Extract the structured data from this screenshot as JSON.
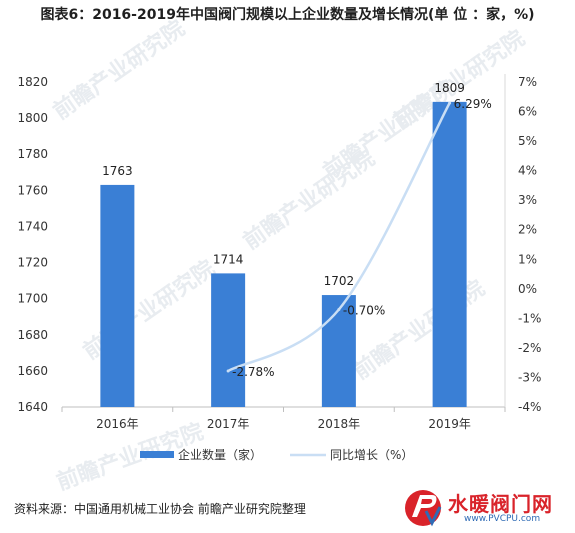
{
  "title": "图表6：2016-2019年中国阀门规模以上企业数量及增长情况(单 位 ：家，%)",
  "source": "资料来源：中国通用机械工业协会 前瞻产业研究院整理",
  "watermark": "前瞻产业研究院",
  "logo": {
    "name": "水暖阀门网",
    "url": "www.PVCPU.com"
  },
  "colors": {
    "bar": "#3a7fd5",
    "line": "#c9def4",
    "accent": "#d9232a"
  },
  "chart_data": {
    "type": "bar",
    "categories": [
      "2016年",
      "2017年",
      "2018年",
      "2019年"
    ],
    "series": [
      {
        "name": "企业数量（家）",
        "type": "bar",
        "axis": "left",
        "values": [
          1763,
          1714,
          1702,
          1809
        ],
        "labels": [
          "1763",
          "1714",
          "1702",
          "1809"
        ]
      },
      {
        "name": "同比增长（%）",
        "type": "line",
        "axis": "right",
        "values": [
          null,
          -2.78,
          -0.7,
          6.29
        ],
        "labels": [
          "",
          "-2.78%",
          "-0.70%",
          "6.29%"
        ]
      }
    ],
    "ylim": [
      1640,
      1820
    ],
    "yticks": [
      "1640",
      "1660",
      "1680",
      "1700",
      "1720",
      "1740",
      "1760",
      "1780",
      "1800",
      "1820"
    ],
    "y2lim": [
      -4,
      7
    ],
    "y2ticks": [
      "-4%",
      "-3%",
      "-2%",
      "-1%",
      "0%",
      "1%",
      "2%",
      "3%",
      "4%",
      "5%",
      "6%",
      "7%"
    ],
    "legend": "bottom"
  }
}
